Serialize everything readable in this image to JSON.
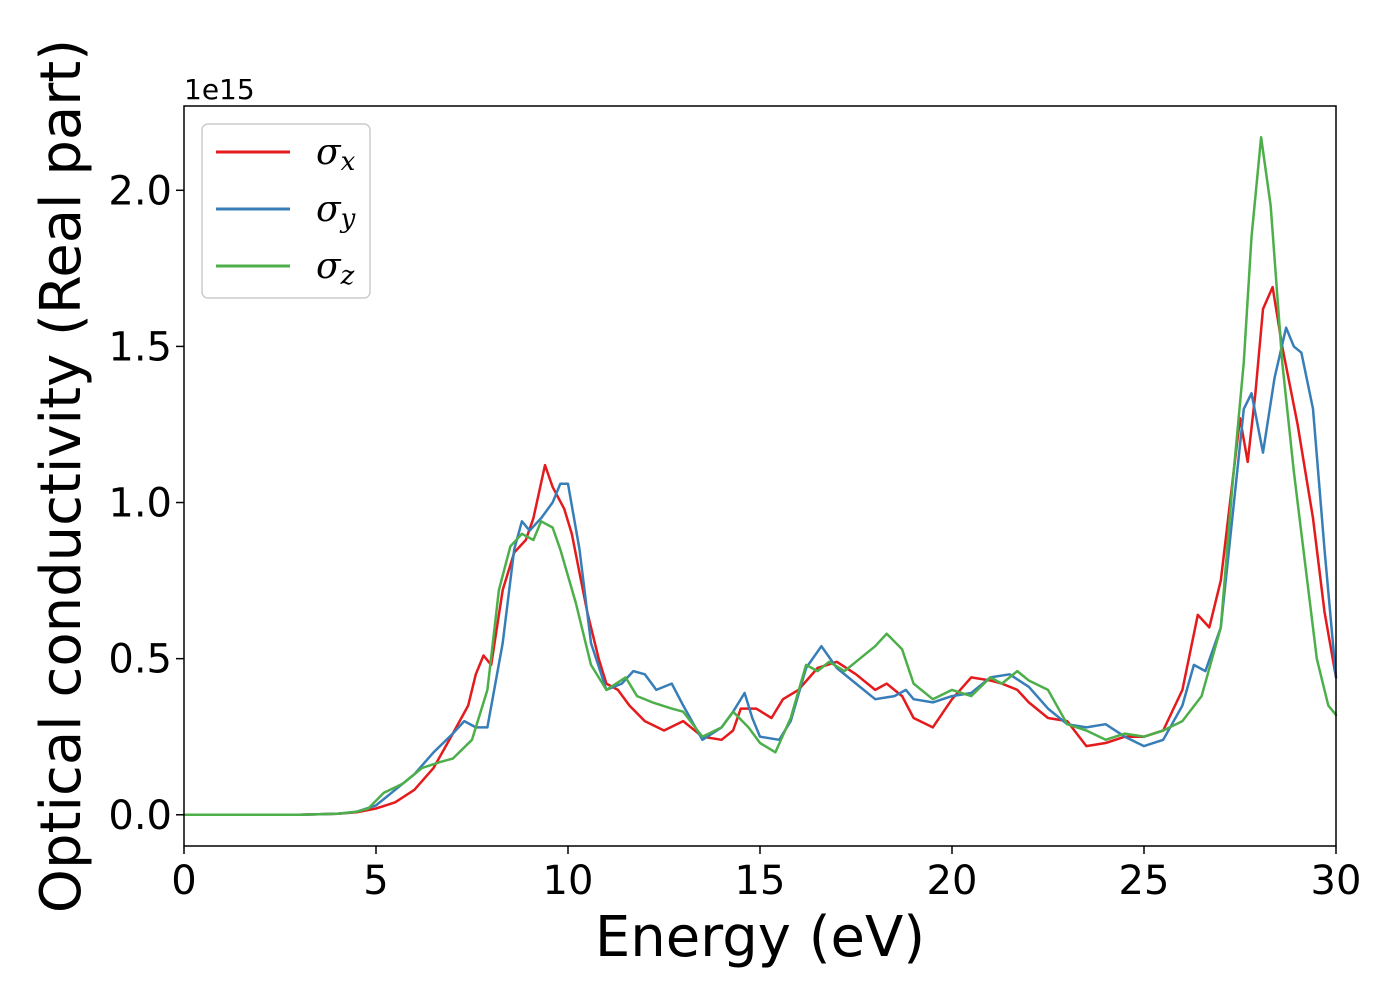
{
  "chart_data": {
    "type": "line",
    "title": "",
    "xlabel": "Energy (eV)",
    "ylabel": "Optical conductivity (Real part)",
    "y_offset_label": "1e15",
    "xlim": [
      0,
      30
    ],
    "ylim": [
      -0.1,
      2.27
    ],
    "xticks": [
      0,
      5,
      10,
      15,
      20,
      25,
      30
    ],
    "xtick_labels": [
      "0",
      "5",
      "10",
      "15",
      "20",
      "25",
      "30"
    ],
    "yticks": [
      0.0,
      0.5,
      1.0,
      1.5,
      2.0
    ],
    "ytick_labels": [
      "0.0",
      "0.5",
      "1.0",
      "1.5",
      "2.0"
    ],
    "grid": false,
    "legend_position": "top-left",
    "series": [
      {
        "name": "σ_x",
        "legend_base": "σ",
        "legend_sub": "x",
        "color": "#e41a1c",
        "points": [
          [
            0,
            0
          ],
          [
            3,
            0
          ],
          [
            4,
            0.003
          ],
          [
            4.5,
            0.008
          ],
          [
            5,
            0.02
          ],
          [
            5.5,
            0.04
          ],
          [
            6,
            0.08
          ],
          [
            6.5,
            0.15
          ],
          [
            7,
            0.26
          ],
          [
            7.4,
            0.35
          ],
          [
            7.6,
            0.45
          ],
          [
            7.8,
            0.51
          ],
          [
            8,
            0.48
          ],
          [
            8.3,
            0.72
          ],
          [
            8.6,
            0.84
          ],
          [
            8.9,
            0.88
          ],
          [
            9.1,
            0.95
          ],
          [
            9.4,
            1.12
          ],
          [
            9.6,
            1.05
          ],
          [
            9.9,
            0.98
          ],
          [
            10.1,
            0.9
          ],
          [
            10.5,
            0.65
          ],
          [
            10.8,
            0.5
          ],
          [
            11,
            0.42
          ],
          [
            11.3,
            0.4
          ],
          [
            11.6,
            0.35
          ],
          [
            12,
            0.3
          ],
          [
            12.5,
            0.27
          ],
          [
            13,
            0.3
          ],
          [
            13.5,
            0.25
          ],
          [
            14,
            0.24
          ],
          [
            14.3,
            0.27
          ],
          [
            14.5,
            0.34
          ],
          [
            14.9,
            0.34
          ],
          [
            15.3,
            0.31
          ],
          [
            15.6,
            0.37
          ],
          [
            16,
            0.4
          ],
          [
            16.5,
            0.47
          ],
          [
            17,
            0.49
          ],
          [
            17.5,
            0.45
          ],
          [
            18,
            0.4
          ],
          [
            18.3,
            0.42
          ],
          [
            18.7,
            0.38
          ],
          [
            19,
            0.31
          ],
          [
            19.5,
            0.28
          ],
          [
            20,
            0.37
          ],
          [
            20.5,
            0.44
          ],
          [
            21,
            0.43
          ],
          [
            21.3,
            0.42
          ],
          [
            21.7,
            0.4
          ],
          [
            22,
            0.36
          ],
          [
            22.5,
            0.31
          ],
          [
            23,
            0.3
          ],
          [
            23.5,
            0.22
          ],
          [
            24,
            0.23
          ],
          [
            24.5,
            0.25
          ],
          [
            25,
            0.25
          ],
          [
            25.5,
            0.27
          ],
          [
            26,
            0.4
          ],
          [
            26.4,
            0.64
          ],
          [
            26.7,
            0.6
          ],
          [
            27,
            0.75
          ],
          [
            27.5,
            1.27
          ],
          [
            27.7,
            1.13
          ],
          [
            27.9,
            1.35
          ],
          [
            28.1,
            1.62
          ],
          [
            28.35,
            1.69
          ],
          [
            28.6,
            1.5
          ],
          [
            29,
            1.25
          ],
          [
            29.4,
            0.95
          ],
          [
            29.7,
            0.65
          ],
          [
            30,
            0.44
          ]
        ]
      },
      {
        "name": "σ_y",
        "legend_base": "σ",
        "legend_sub": "y",
        "color": "#377eb8",
        "points": [
          [
            0,
            0
          ],
          [
            3,
            0
          ],
          [
            4,
            0.003
          ],
          [
            4.5,
            0.01
          ],
          [
            5,
            0.03
          ],
          [
            5.5,
            0.08
          ],
          [
            6,
            0.13
          ],
          [
            6.5,
            0.2
          ],
          [
            7,
            0.26
          ],
          [
            7.3,
            0.3
          ],
          [
            7.6,
            0.28
          ],
          [
            7.9,
            0.28
          ],
          [
            8.3,
            0.55
          ],
          [
            8.6,
            0.85
          ],
          [
            8.8,
            0.94
          ],
          [
            9,
            0.91
          ],
          [
            9.3,
            0.95
          ],
          [
            9.6,
            1.0
          ],
          [
            9.8,
            1.06
          ],
          [
            10,
            1.06
          ],
          [
            10.3,
            0.85
          ],
          [
            10.6,
            0.55
          ],
          [
            11,
            0.4
          ],
          [
            11.4,
            0.42
          ],
          [
            11.7,
            0.46
          ],
          [
            12,
            0.45
          ],
          [
            12.3,
            0.4
          ],
          [
            12.7,
            0.42
          ],
          [
            13,
            0.35
          ],
          [
            13.5,
            0.24
          ],
          [
            14,
            0.28
          ],
          [
            14.3,
            0.33
          ],
          [
            14.6,
            0.39
          ],
          [
            14.8,
            0.31
          ],
          [
            15,
            0.25
          ],
          [
            15.5,
            0.24
          ],
          [
            15.8,
            0.3
          ],
          [
            16.2,
            0.47
          ],
          [
            16.6,
            0.54
          ],
          [
            17,
            0.47
          ],
          [
            17.5,
            0.42
          ],
          [
            18,
            0.37
          ],
          [
            18.5,
            0.38
          ],
          [
            18.8,
            0.4
          ],
          [
            19,
            0.37
          ],
          [
            19.5,
            0.36
          ],
          [
            20,
            0.38
          ],
          [
            20.5,
            0.39
          ],
          [
            21,
            0.44
          ],
          [
            21.5,
            0.45
          ],
          [
            22,
            0.41
          ],
          [
            22.5,
            0.34
          ],
          [
            23,
            0.29
          ],
          [
            23.5,
            0.28
          ],
          [
            24,
            0.29
          ],
          [
            24.5,
            0.25
          ],
          [
            25,
            0.22
          ],
          [
            25.5,
            0.24
          ],
          [
            26,
            0.35
          ],
          [
            26.3,
            0.48
          ],
          [
            26.6,
            0.46
          ],
          [
            27,
            0.6
          ],
          [
            27.3,
            0.95
          ],
          [
            27.6,
            1.3
          ],
          [
            27.8,
            1.35
          ],
          [
            28.1,
            1.16
          ],
          [
            28.4,
            1.4
          ],
          [
            28.7,
            1.56
          ],
          [
            28.9,
            1.5
          ],
          [
            29.1,
            1.48
          ],
          [
            29.4,
            1.3
          ],
          [
            29.7,
            0.85
          ],
          [
            30,
            0.44
          ]
        ]
      },
      {
        "name": "σ_z",
        "legend_base": "σ",
        "legend_sub": "z",
        "color": "#4daf4a",
        "points": [
          [
            0,
            0
          ],
          [
            3,
            0
          ],
          [
            4,
            0.003
          ],
          [
            4.5,
            0.01
          ],
          [
            4.8,
            0.02
          ],
          [
            5.2,
            0.07
          ],
          [
            5.7,
            0.1
          ],
          [
            6.2,
            0.15
          ],
          [
            6.7,
            0.17
          ],
          [
            7,
            0.18
          ],
          [
            7.5,
            0.24
          ],
          [
            7.9,
            0.4
          ],
          [
            8.2,
            0.72
          ],
          [
            8.5,
            0.86
          ],
          [
            8.8,
            0.9
          ],
          [
            9.1,
            0.88
          ],
          [
            9.3,
            0.94
          ],
          [
            9.6,
            0.92
          ],
          [
            9.8,
            0.85
          ],
          [
            10.2,
            0.68
          ],
          [
            10.6,
            0.48
          ],
          [
            11,
            0.4
          ],
          [
            11.5,
            0.44
          ],
          [
            11.8,
            0.38
          ],
          [
            12.2,
            0.36
          ],
          [
            12.7,
            0.34
          ],
          [
            13,
            0.33
          ],
          [
            13.5,
            0.25
          ],
          [
            14,
            0.28
          ],
          [
            14.3,
            0.33
          ],
          [
            14.7,
            0.28
          ],
          [
            15,
            0.23
          ],
          [
            15.4,
            0.2
          ],
          [
            15.8,
            0.31
          ],
          [
            16.2,
            0.48
          ],
          [
            16.5,
            0.46
          ],
          [
            16.8,
            0.49
          ],
          [
            17.2,
            0.46
          ],
          [
            17.6,
            0.5
          ],
          [
            18,
            0.54
          ],
          [
            18.3,
            0.58
          ],
          [
            18.7,
            0.53
          ],
          [
            19,
            0.42
          ],
          [
            19.5,
            0.37
          ],
          [
            20,
            0.4
          ],
          [
            20.5,
            0.38
          ],
          [
            21,
            0.44
          ],
          [
            21.3,
            0.42
          ],
          [
            21.7,
            0.46
          ],
          [
            22,
            0.43
          ],
          [
            22.5,
            0.4
          ],
          [
            23,
            0.29
          ],
          [
            23.5,
            0.27
          ],
          [
            24,
            0.24
          ],
          [
            24.5,
            0.26
          ],
          [
            25,
            0.25
          ],
          [
            25.5,
            0.27
          ],
          [
            26,
            0.3
          ],
          [
            26.5,
            0.38
          ],
          [
            27,
            0.6
          ],
          [
            27.3,
            1.05
          ],
          [
            27.6,
            1.45
          ],
          [
            27.8,
            1.85
          ],
          [
            28.05,
            2.17
          ],
          [
            28.3,
            1.95
          ],
          [
            28.6,
            1.45
          ],
          [
            28.9,
            1.1
          ],
          [
            29.2,
            0.8
          ],
          [
            29.5,
            0.5
          ],
          [
            29.8,
            0.35
          ],
          [
            30,
            0.32
          ]
        ]
      }
    ]
  }
}
